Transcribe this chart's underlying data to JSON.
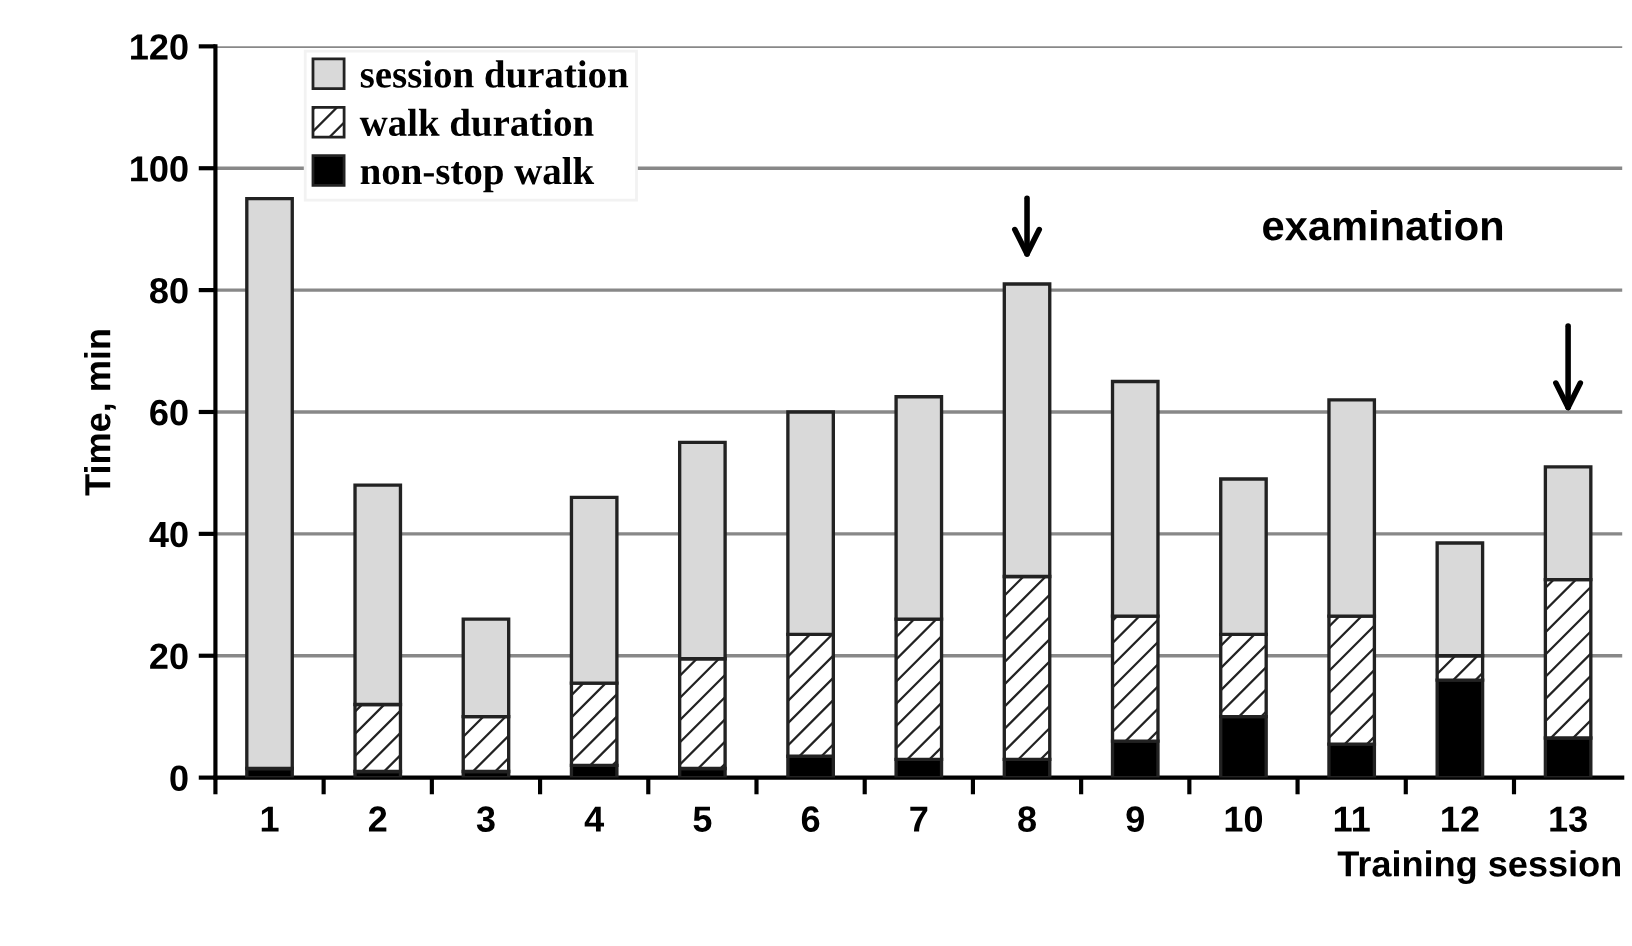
{
  "chart_data": {
    "type": "bar",
    "stacked": true,
    "xlabel": "Training session",
    "ylabel": "Time, min",
    "categories": [
      "1",
      "2",
      "3",
      "4",
      "5",
      "6",
      "7",
      "8",
      "9",
      "10",
      "11",
      "12",
      "13"
    ],
    "series": [
      {
        "name": "non-stop walk",
        "color": "#000000",
        "values": [
          1.5,
          1,
          1,
          2,
          1.5,
          3.5,
          3,
          3,
          6,
          10,
          5.5,
          16,
          6.5
        ]
      },
      {
        "name": "walk duration",
        "color": "#222222",
        "values": [
          0,
          11,
          9,
          13.5,
          18,
          20,
          23,
          30,
          20.5,
          13.5,
          21,
          4,
          26
        ]
      },
      {
        "name": "session duration",
        "color": "#d9d9d9",
        "values": [
          93.5,
          36,
          16,
          30.5,
          35.5,
          36.5,
          36.5,
          48,
          38.5,
          25.5,
          35.5,
          18.5,
          18.5
        ]
      }
    ],
    "ylim": [
      0,
      120
    ],
    "yticks": [
      0,
      20,
      40,
      60,
      80,
      100,
      120
    ],
    "grid": "y",
    "legend": "top left",
    "annotations": [
      "examination"
    ]
  }
}
